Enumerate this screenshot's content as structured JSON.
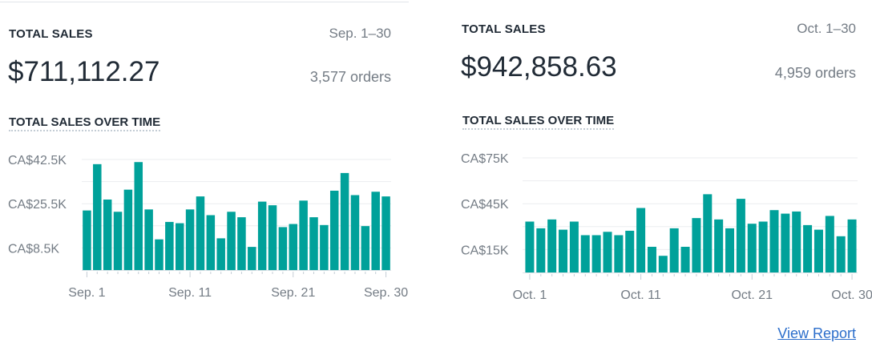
{
  "left_card": {
    "title": "TOTAL SALES",
    "date_range": "Sep. 1–30",
    "amount": "$711,112.27",
    "orders": "3,577 orders",
    "chart_title": "TOTAL SALES OVER TIME"
  },
  "right_card": {
    "title": "TOTAL SALES",
    "date_range": "Oct. 1–30",
    "amount": "$942,858.63",
    "orders": "4,959 orders",
    "chart_title": "TOTAL SALES OVER TIME",
    "view_report": "View Report"
  },
  "colors": {
    "bar": "#00a19a",
    "link": "#2c6ecb"
  },
  "chart_data": [
    {
      "type": "bar",
      "title": "TOTAL SALES OVER TIME",
      "unit": "CA$ thousands",
      "x_tick_labels": [
        "Sep. 1",
        "Sep. 11",
        "Sep. 21",
        "Sep. 30"
      ],
      "x_tick_days": [
        1,
        11,
        21,
        30
      ],
      "y_tick_labels": [
        "CA$42.5K",
        "CA$25.5K",
        "CA$8.5K"
      ],
      "y_ticks": [
        42.5,
        25.5,
        8.5
      ],
      "gridlines": [
        8.5,
        17,
        25.5,
        34,
        42.5
      ],
      "ylim": [
        0,
        42.5
      ],
      "grid": true,
      "categories": [
        1,
        2,
        3,
        4,
        5,
        6,
        7,
        8,
        9,
        10,
        11,
        12,
        13,
        14,
        15,
        16,
        17,
        18,
        19,
        20,
        21,
        22,
        23,
        24,
        25,
        26,
        27,
        28,
        29,
        30
      ],
      "values": [
        22.9,
        40.7,
        27.1,
        22.4,
        30.9,
        41.5,
        23.3,
        11.8,
        18.5,
        18.0,
        23.3,
        28.3,
        21.1,
        12.2,
        22.4,
        20.3,
        8.9,
        26.3,
        24.9,
        16.5,
        17.7,
        26.7,
        20.3,
        17.3,
        30.5,
        37.3,
        28.8,
        16.9,
        30.1,
        28.3
      ]
    },
    {
      "type": "bar",
      "title": "TOTAL SALES OVER TIME",
      "unit": "CA$ thousands",
      "x_tick_labels": [
        "Oct. 1",
        "Oct. 11",
        "Oct. 21",
        "Oct. 30"
      ],
      "x_tick_days": [
        1,
        11,
        21,
        30
      ],
      "y_tick_labels": [
        "CA$75K",
        "CA$45K",
        "CA$15K"
      ],
      "y_ticks": [
        75,
        45,
        15
      ],
      "gridlines": [
        15,
        30,
        45,
        60,
        75
      ],
      "ylim": [
        0,
        75
      ],
      "grid": true,
      "categories": [
        1,
        2,
        3,
        4,
        5,
        6,
        7,
        8,
        9,
        10,
        11,
        12,
        13,
        14,
        15,
        16,
        17,
        18,
        19,
        20,
        21,
        22,
        23,
        24,
        25,
        26,
        27,
        28,
        29,
        30
      ],
      "values": [
        33.3,
        28.9,
        34.7,
        28.0,
        33.3,
        24.4,
        24.4,
        26.6,
        24.4,
        27.3,
        42.2,
        16.8,
        10.9,
        28.9,
        16.8,
        35.6,
        51.2,
        34.7,
        28.9,
        48.2,
        31.9,
        33.3,
        40.8,
        38.5,
        39.9,
        31.0,
        28.0,
        37.0,
        23.7,
        34.7
      ]
    }
  ]
}
